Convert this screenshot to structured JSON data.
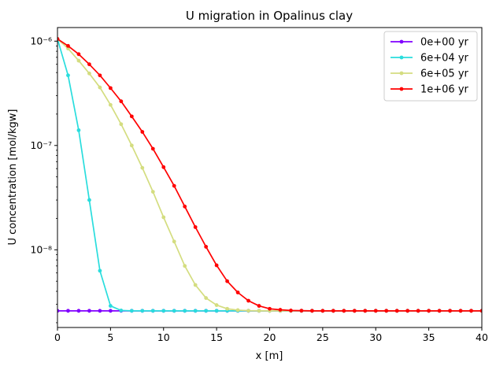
{
  "chart_data": {
    "type": "line",
    "title": "U migration in Opalinus clay",
    "xlabel": "x [m]",
    "ylabel": "U concentration [mol/kgw]",
    "xlim": [
      0,
      40
    ],
    "ylim": [
      1.8e-09,
      1.35e-06
    ],
    "yscale": "log",
    "grid": false,
    "legend": "top-right",
    "x_ticks": [
      0,
      5,
      10,
      15,
      20,
      25,
      30,
      35,
      40
    ],
    "x_tick_labels": [
      "0",
      "5",
      "10",
      "15",
      "20",
      "25",
      "30",
      "35",
      "40"
    ],
    "y_ticks": [
      1e-08,
      1e-07,
      1e-06
    ],
    "y_tick_labels": [
      "10⁻⁸",
      "10⁻⁷",
      "10⁻⁶"
    ],
    "x": [
      0,
      1,
      2,
      3,
      4,
      5,
      6,
      7,
      8,
      9,
      10,
      11,
      12,
      13,
      14,
      15,
      16,
      17,
      18,
      19,
      20,
      21,
      22,
      23,
      24,
      25,
      26,
      27,
      28,
      29,
      30,
      31,
      32,
      33,
      34,
      35,
      36,
      37,
      38,
      39,
      40
    ],
    "series": [
      {
        "name": "0e+00 yr",
        "color": "#8000ff",
        "values": [
          2.6e-09,
          2.6e-09,
          2.6e-09,
          2.6e-09,
          2.6e-09,
          2.6e-09,
          2.6e-09,
          2.6e-09,
          2.6e-09,
          2.6e-09,
          2.6e-09,
          2.6e-09,
          2.6e-09,
          2.6e-09,
          2.6e-09,
          2.6e-09,
          2.6e-09,
          2.6e-09,
          2.6e-09,
          2.6e-09,
          2.6e-09,
          2.6e-09,
          2.6e-09,
          2.6e-09,
          2.6e-09,
          2.6e-09,
          2.6e-09,
          2.6e-09,
          2.6e-09,
          2.6e-09,
          2.6e-09,
          2.6e-09,
          2.6e-09,
          2.6e-09,
          2.6e-09,
          2.6e-09,
          2.6e-09,
          2.6e-09,
          2.6e-09,
          2.6e-09,
          2.6e-09
        ]
      },
      {
        "name": "6e+04 yr",
        "color": "#2adddd",
        "values": [
          1.05e-06,
          4.7e-07,
          1.4e-07,
          3e-08,
          6.3e-09,
          2.9e-09,
          2.62e-09,
          2.6e-09,
          2.6e-09,
          2.6e-09,
          2.6e-09,
          2.6e-09,
          2.6e-09,
          2.6e-09,
          2.6e-09,
          2.6e-09,
          2.6e-09,
          2.6e-09,
          2.6e-09,
          2.6e-09,
          2.6e-09,
          2.6e-09,
          2.6e-09,
          2.6e-09,
          2.6e-09,
          2.6e-09,
          2.6e-09,
          2.6e-09,
          2.6e-09,
          2.6e-09,
          2.6e-09,
          2.6e-09,
          2.6e-09,
          2.6e-09,
          2.6e-09,
          2.6e-09,
          2.6e-09,
          2.6e-09,
          2.6e-09,
          2.6e-09,
          2.6e-09
        ]
      },
      {
        "name": "6e+05 yr",
        "color": "#d4dd80",
        "values": [
          1.05e-06,
          8.5e-07,
          6.5e-07,
          4.9e-07,
          3.6e-07,
          2.45e-07,
          1.6e-07,
          1e-07,
          6.1e-08,
          3.6e-08,
          2.05e-08,
          1.2e-08,
          7e-09,
          4.6e-09,
          3.45e-09,
          2.95e-09,
          2.72e-09,
          2.64e-09,
          2.61e-09,
          2.6e-09,
          2.6e-09,
          2.6e-09,
          2.6e-09,
          2.6e-09,
          2.6e-09,
          2.6e-09,
          2.6e-09,
          2.6e-09,
          2.6e-09,
          2.6e-09,
          2.6e-09,
          2.6e-09,
          2.6e-09,
          2.6e-09,
          2.6e-09,
          2.6e-09,
          2.6e-09,
          2.6e-09,
          2.6e-09,
          2.6e-09,
          2.6e-09
        ]
      },
      {
        "name": "1e+06 yr",
        "color": "#ff0000",
        "values": [
          1.05e-06,
          9e-07,
          7.5e-07,
          6e-07,
          4.7e-07,
          3.55e-07,
          2.65e-07,
          1.9e-07,
          1.35e-07,
          9.3e-08,
          6.2e-08,
          4.1e-08,
          2.6e-08,
          1.65e-08,
          1.07e-08,
          7.1e-09,
          5e-09,
          3.9e-09,
          3.25e-09,
          2.9e-09,
          2.72e-09,
          2.66e-09,
          2.62e-09,
          2.61e-09,
          2.6e-09,
          2.6e-09,
          2.6e-09,
          2.6e-09,
          2.6e-09,
          2.6e-09,
          2.6e-09,
          2.6e-09,
          2.6e-09,
          2.6e-09,
          2.6e-09,
          2.6e-09,
          2.6e-09,
          2.6e-09,
          2.6e-09,
          2.6e-09,
          2.6e-09
        ]
      }
    ]
  }
}
